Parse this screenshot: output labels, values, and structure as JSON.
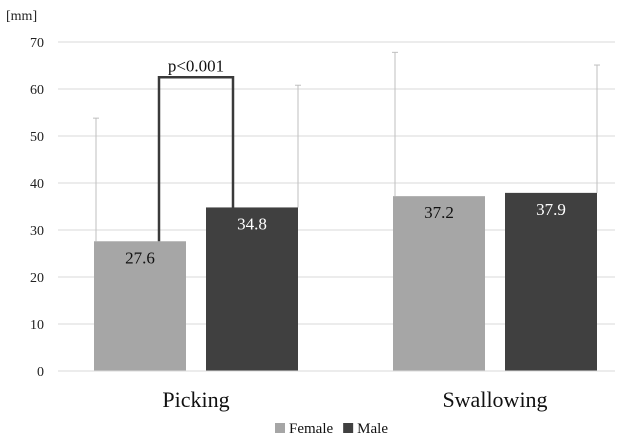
{
  "chart_data": {
    "type": "bar",
    "unit_label": "[mm]",
    "categories": [
      "Picking",
      "Swallowing"
    ],
    "series": [
      {
        "name": "Female",
        "color": "#a6a6a6",
        "values": [
          27.6,
          37.2
        ],
        "error_upper": [
          53.8,
          67.8
        ],
        "label_color": "#111111"
      },
      {
        "name": "Male",
        "color": "#404040",
        "values": [
          34.8,
          37.9
        ],
        "error_upper": [
          60.8,
          65.1
        ],
        "label_color": "#ffffff"
      }
    ],
    "data_labels": [
      [
        "27.6",
        "37.2"
      ],
      [
        "34.8",
        "37.9"
      ]
    ],
    "ylim": [
      0,
      70
    ],
    "yticks": [
      0,
      10,
      20,
      30,
      40,
      50,
      60,
      70
    ],
    "grid": true,
    "legend_position": "bottom",
    "annotations": [
      {
        "text": "p<0.001",
        "category_index": 0,
        "bracket_top": 62.5
      }
    ]
  }
}
